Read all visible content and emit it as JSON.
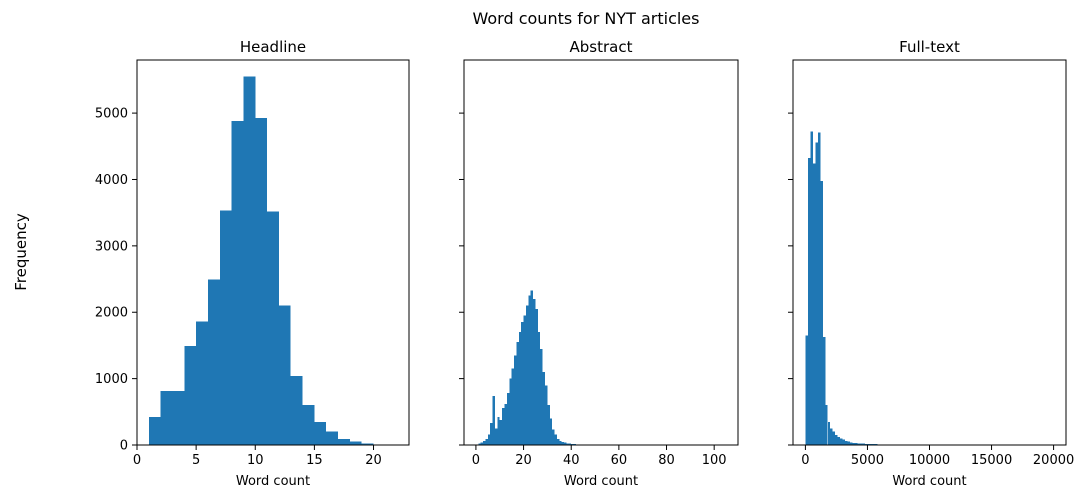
{
  "figure": {
    "suptitle": "Word counts for NYT articles",
    "ylabel": "Frequency"
  },
  "colors": {
    "bar": "#1f77b4",
    "axis": "#000000",
    "background": "#ffffff"
  },
  "chart_data": [
    {
      "type": "bar",
      "title": "Headline",
      "xlabel": "Word count",
      "ylabel": "Frequency",
      "xlim": [
        0,
        23
      ],
      "ylim": [
        0,
        5800
      ],
      "xticks": [
        0,
        5,
        10,
        15,
        20
      ],
      "yticks": [
        0,
        1000,
        2000,
        3000,
        4000,
        5000
      ],
      "show_ytick_labels": true,
      "bin_edges": [
        1,
        2,
        3,
        4,
        5,
        6,
        7,
        8,
        9,
        10,
        11,
        12,
        13,
        14,
        15,
        16,
        17,
        18,
        19,
        20,
        21,
        22
      ],
      "values": [
        420,
        810,
        810,
        1490,
        1860,
        2490,
        3530,
        4880,
        5550,
        4930,
        3520,
        2100,
        1040,
        600,
        350,
        200,
        90,
        50,
        20,
        10,
        5
      ]
    },
    {
      "type": "bar",
      "title": "Abstract",
      "xlabel": "Word count",
      "ylabel": "Frequency",
      "xlim": [
        -5,
        110
      ],
      "ylim": [
        0,
        5800
      ],
      "xticks": [
        0,
        20,
        40,
        60,
        80,
        100
      ],
      "yticks": [
        0,
        1000,
        2000,
        3000,
        4000,
        5000
      ],
      "show_ytick_labels": false,
      "bin_start": 0,
      "bin_width": 1,
      "values": [
        10,
        20,
        40,
        60,
        90,
        160,
        330,
        740,
        250,
        420,
        380,
        560,
        620,
        780,
        1000,
        1150,
        1350,
        1550,
        1700,
        1850,
        1950,
        2100,
        2250,
        2330,
        2200,
        2050,
        1700,
        1450,
        1100,
        900,
        600,
        400,
        230,
        160,
        90,
        60,
        45,
        35,
        25,
        20,
        15,
        12,
        10,
        10,
        8,
        8,
        6,
        6,
        5,
        5,
        4,
        4,
        3,
        3,
        3,
        2,
        2,
        2,
        2,
        2,
        2,
        2,
        2,
        1,
        1,
        1,
        1,
        1,
        1,
        1,
        1,
        1,
        0,
        0,
        0,
        0,
        0,
        0,
        0,
        0,
        0,
        0,
        0,
        0,
        0,
        0,
        0,
        0,
        0,
        0,
        0,
        0,
        0,
        0,
        0,
        0,
        0,
        0,
        0,
        0,
        0,
        0,
        0,
        0
      ]
    },
    {
      "type": "bar",
      "title": "Full-text",
      "xlabel": "Word count",
      "ylabel": "Frequency",
      "xlim": [
        -1000,
        21000
      ],
      "ylim": [
        0,
        5800
      ],
      "xticks": [
        0,
        5000,
        10000,
        15000,
        20000
      ],
      "yticks": [
        0,
        1000,
        2000,
        3000,
        4000,
        5000
      ],
      "show_ytick_labels": false,
      "bin_start": 0,
      "bin_width": 200,
      "values": [
        1650,
        4320,
        4720,
        4240,
        4560,
        4710,
        3980,
        1630,
        600,
        350,
        250,
        200,
        150,
        120,
        100,
        80,
        60,
        50,
        40,
        30,
        28,
        25,
        22,
        20,
        18,
        16,
        15,
        14,
        12,
        11,
        10,
        10,
        9,
        9,
        8,
        8,
        7,
        7,
        6,
        6,
        5,
        5,
        5,
        4,
        4,
        4,
        3,
        3,
        3,
        3,
        2,
        2,
        2,
        2,
        2,
        2,
        2,
        2,
        2,
        1,
        1,
        1,
        1,
        1,
        1,
        1,
        1,
        1,
        1,
        1,
        1,
        1,
        1,
        1,
        1,
        1,
        1,
        1,
        1,
        1,
        1,
        1,
        1,
        1,
        1,
        1,
        1,
        1,
        1,
        1,
        1,
        1,
        1,
        1,
        1,
        1,
        1,
        1,
        1,
        1,
        1
      ]
    }
  ]
}
